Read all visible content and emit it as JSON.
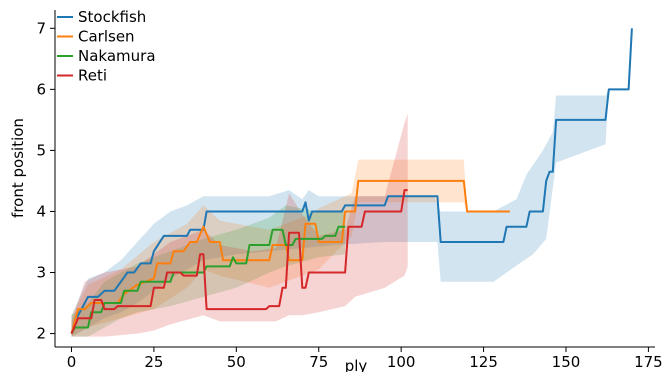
{
  "chart_data": {
    "type": "line",
    "xlabel": "ply",
    "ylabel": "front position",
    "xlim": [
      -5,
      177
    ],
    "ylim": [
      1.78,
      7.3
    ],
    "xticks": [
      0,
      25,
      50,
      75,
      100,
      125,
      150,
      175
    ],
    "yticks": [
      2,
      3,
      4,
      5,
      6,
      7
    ],
    "legend_position": "top-left",
    "grid": false,
    "series": [
      {
        "name": "Stockfish",
        "color": "#1f77b4",
        "points": [
          [
            0,
            2.0
          ],
          [
            1,
            2.2
          ],
          [
            3,
            2.4
          ],
          [
            5,
            2.6
          ],
          [
            8,
            2.6
          ],
          [
            10,
            2.7
          ],
          [
            13,
            2.7
          ],
          [
            15,
            2.85
          ],
          [
            17,
            3.0
          ],
          [
            19,
            3.0
          ],
          [
            21,
            3.15
          ],
          [
            24,
            3.15
          ],
          [
            25,
            3.35
          ],
          [
            28,
            3.6
          ],
          [
            35,
            3.6
          ],
          [
            36,
            3.7
          ],
          [
            40,
            3.7
          ],
          [
            41,
            4.0
          ],
          [
            70,
            4.0
          ],
          [
            71,
            4.15
          ],
          [
            72,
            3.85
          ],
          [
            73,
            4.0
          ],
          [
            82,
            4.0
          ],
          [
            83,
            4.1
          ],
          [
            95,
            4.1
          ],
          [
            96,
            4.25
          ],
          [
            111,
            4.25
          ],
          [
            112,
            3.5
          ],
          [
            131,
            3.5
          ],
          [
            132,
            3.75
          ],
          [
            138,
            3.75
          ],
          [
            139,
            4.0
          ],
          [
            143,
            4.0
          ],
          [
            144,
            4.5
          ],
          [
            145,
            4.65
          ],
          [
            146,
            4.65
          ],
          [
            147,
            5.5
          ],
          [
            162,
            5.5
          ],
          [
            163,
            6.0
          ],
          [
            169,
            6.0
          ],
          [
            170,
            7.0
          ]
        ],
        "band_upper": [
          [
            0,
            2.3
          ],
          [
            5,
            2.9
          ],
          [
            10,
            3.0
          ],
          [
            15,
            3.2
          ],
          [
            20,
            3.5
          ],
          [
            25,
            3.8
          ],
          [
            30,
            4.0
          ],
          [
            35,
            4.1
          ],
          [
            40,
            4.25
          ],
          [
            60,
            4.25
          ],
          [
            66,
            4.35
          ],
          [
            70,
            4.2
          ],
          [
            72,
            4.35
          ],
          [
            75,
            4.25
          ],
          [
            110,
            4.25
          ],
          [
            112,
            4.0
          ],
          [
            120,
            4.0
          ],
          [
            128,
            4.0
          ],
          [
            135,
            4.2
          ],
          [
            138,
            4.6
          ],
          [
            143,
            5.0
          ],
          [
            146,
            5.3
          ],
          [
            147,
            5.9
          ],
          [
            162,
            5.9
          ],
          [
            163,
            6.0
          ],
          [
            170,
            7.0
          ]
        ],
        "band_lower": [
          [
            0,
            1.95
          ],
          [
            5,
            2.1
          ],
          [
            10,
            2.25
          ],
          [
            15,
            2.35
          ],
          [
            20,
            2.5
          ],
          [
            25,
            2.7
          ],
          [
            30,
            2.9
          ],
          [
            35,
            3.05
          ],
          [
            40,
            3.2
          ],
          [
            50,
            3.3
          ],
          [
            60,
            3.35
          ],
          [
            70,
            3.4
          ],
          [
            80,
            3.45
          ],
          [
            95,
            3.5
          ],
          [
            111,
            3.5
          ],
          [
            112,
            2.85
          ],
          [
            122,
            2.85
          ],
          [
            128,
            2.85
          ],
          [
            132,
            3.0
          ],
          [
            140,
            3.3
          ],
          [
            144,
            3.55
          ],
          [
            147,
            4.8
          ],
          [
            162,
            5.1
          ],
          [
            163,
            6.0
          ],
          [
            170,
            7.0
          ]
        ]
      },
      {
        "name": "Carlsen",
        "color": "#ff7f0e",
        "points": [
          [
            0,
            2.0
          ],
          [
            2,
            2.4
          ],
          [
            4,
            2.4
          ],
          [
            6,
            2.5
          ],
          [
            14,
            2.5
          ],
          [
            16,
            2.65
          ],
          [
            20,
            2.8
          ],
          [
            25,
            2.9
          ],
          [
            26,
            3.15
          ],
          [
            30,
            3.15
          ],
          [
            31,
            3.35
          ],
          [
            34,
            3.35
          ],
          [
            36,
            3.5
          ],
          [
            38,
            3.5
          ],
          [
            40,
            3.75
          ],
          [
            42,
            3.5
          ],
          [
            45,
            3.5
          ],
          [
            46,
            3.2
          ],
          [
            60,
            3.2
          ],
          [
            61,
            3.45
          ],
          [
            65,
            3.45
          ],
          [
            66,
            3.2
          ],
          [
            70,
            3.2
          ],
          [
            71,
            3.8
          ],
          [
            74,
            3.8
          ],
          [
            75,
            3.5
          ],
          [
            82,
            3.5
          ],
          [
            83,
            4.0
          ],
          [
            86,
            4.0
          ],
          [
            87,
            4.5
          ],
          [
            119,
            4.5
          ],
          [
            120,
            4.0
          ],
          [
            133,
            4.0
          ]
        ],
        "band_upper": [
          [
            0,
            2.3
          ],
          [
            5,
            2.8
          ],
          [
            15,
            3.05
          ],
          [
            25,
            3.5
          ],
          [
            35,
            3.8
          ],
          [
            40,
            4.1
          ],
          [
            45,
            3.85
          ],
          [
            60,
            3.7
          ],
          [
            70,
            3.9
          ],
          [
            75,
            4.05
          ],
          [
            85,
            4.3
          ],
          [
            87,
            4.85
          ],
          [
            119,
            4.85
          ],
          [
            120,
            4.0
          ],
          [
            133,
            4.0
          ]
        ],
        "band_lower": [
          [
            0,
            1.95
          ],
          [
            5,
            2.1
          ],
          [
            15,
            2.25
          ],
          [
            25,
            2.4
          ],
          [
            35,
            2.75
          ],
          [
            40,
            3.05
          ],
          [
            45,
            2.95
          ],
          [
            60,
            2.75
          ],
          [
            70,
            2.95
          ],
          [
            75,
            3.05
          ],
          [
            85,
            3.6
          ],
          [
            87,
            4.15
          ],
          [
            119,
            4.15
          ],
          [
            120,
            4.0
          ],
          [
            133,
            4.0
          ]
        ]
      },
      {
        "name": "Nakamura",
        "color": "#2ca02c",
        "points": [
          [
            0,
            2.0
          ],
          [
            1,
            2.1
          ],
          [
            5,
            2.1
          ],
          [
            6,
            2.35
          ],
          [
            9,
            2.35
          ],
          [
            10,
            2.5
          ],
          [
            15,
            2.5
          ],
          [
            16,
            2.7
          ],
          [
            20,
            2.7
          ],
          [
            21,
            2.85
          ],
          [
            30,
            2.85
          ],
          [
            31,
            3.0
          ],
          [
            40,
            3.0
          ],
          [
            41,
            3.1
          ],
          [
            48,
            3.1
          ],
          [
            49,
            3.25
          ],
          [
            50,
            3.15
          ],
          [
            53,
            3.15
          ],
          [
            54,
            3.45
          ],
          [
            60,
            3.45
          ],
          [
            61,
            3.7
          ],
          [
            64,
            3.7
          ],
          [
            65,
            3.45
          ],
          [
            67,
            3.45
          ],
          [
            68,
            3.55
          ],
          [
            76,
            3.55
          ],
          [
            77,
            3.6
          ],
          [
            80,
            3.6
          ],
          [
            81,
            3.75
          ],
          [
            83,
            3.75
          ]
        ],
        "band_upper": [
          [
            0,
            2.3
          ],
          [
            5,
            2.5
          ],
          [
            10,
            2.85
          ],
          [
            15,
            3.0
          ],
          [
            20,
            3.15
          ],
          [
            30,
            3.35
          ],
          [
            40,
            3.55
          ],
          [
            50,
            3.7
          ],
          [
            60,
            3.9
          ],
          [
            65,
            4.1
          ],
          [
            75,
            4.0
          ],
          [
            83,
            4.0
          ]
        ],
        "band_lower": [
          [
            0,
            1.95
          ],
          [
            5,
            1.95
          ],
          [
            10,
            2.1
          ],
          [
            15,
            2.25
          ],
          [
            20,
            2.35
          ],
          [
            30,
            2.45
          ],
          [
            40,
            2.6
          ],
          [
            50,
            2.75
          ],
          [
            60,
            3.0
          ],
          [
            65,
            3.1
          ],
          [
            75,
            3.25
          ],
          [
            83,
            3.3
          ]
        ]
      },
      {
        "name": "Reti",
        "color": "#d62728",
        "points": [
          [
            0,
            2.0
          ],
          [
            2,
            2.25
          ],
          [
            6,
            2.25
          ],
          [
            7,
            2.55
          ],
          [
            9,
            2.55
          ],
          [
            10,
            2.4
          ],
          [
            13,
            2.4
          ],
          [
            14,
            2.45
          ],
          [
            24,
            2.45
          ],
          [
            25,
            2.75
          ],
          [
            28,
            2.75
          ],
          [
            29,
            3.0
          ],
          [
            33,
            3.0
          ],
          [
            34,
            2.95
          ],
          [
            38,
            2.95
          ],
          [
            39,
            3.3
          ],
          [
            40,
            3.3
          ],
          [
            41,
            2.4
          ],
          [
            59,
            2.4
          ],
          [
            60,
            2.45
          ],
          [
            63,
            2.45
          ],
          [
            64,
            2.75
          ],
          [
            65,
            2.75
          ],
          [
            66,
            3.65
          ],
          [
            69,
            3.65
          ],
          [
            70,
            2.75
          ],
          [
            71,
            2.75
          ],
          [
            72,
            3.0
          ],
          [
            83,
            3.0
          ],
          [
            84,
            3.75
          ],
          [
            88,
            3.75
          ],
          [
            89,
            4.0
          ],
          [
            100,
            4.0
          ],
          [
            101,
            4.35
          ],
          [
            102,
            4.35
          ]
        ],
        "band_upper": [
          [
            0,
            2.2
          ],
          [
            4,
            2.85
          ],
          [
            10,
            3.0
          ],
          [
            20,
            3.1
          ],
          [
            25,
            3.3
          ],
          [
            30,
            3.5
          ],
          [
            40,
            3.7
          ],
          [
            45,
            3.45
          ],
          [
            55,
            3.35
          ],
          [
            62,
            3.4
          ],
          [
            66,
            4.3
          ],
          [
            70,
            3.95
          ],
          [
            75,
            3.6
          ],
          [
            83,
            3.7
          ],
          [
            86,
            4.25
          ],
          [
            95,
            4.25
          ],
          [
            101,
            5.45
          ],
          [
            102,
            5.6
          ]
        ],
        "band_lower": [
          [
            0,
            1.95
          ],
          [
            4,
            1.95
          ],
          [
            10,
            1.95
          ],
          [
            20,
            2.0
          ],
          [
            25,
            2.05
          ],
          [
            30,
            2.15
          ],
          [
            40,
            2.3
          ],
          [
            45,
            2.2
          ],
          [
            55,
            2.2
          ],
          [
            62,
            2.2
          ],
          [
            66,
            2.3
          ],
          [
            70,
            2.3
          ],
          [
            75,
            2.35
          ],
          [
            83,
            2.45
          ],
          [
            86,
            2.6
          ],
          [
            95,
            2.75
          ],
          [
            101,
            2.95
          ],
          [
            102,
            3.1
          ]
        ]
      }
    ]
  }
}
